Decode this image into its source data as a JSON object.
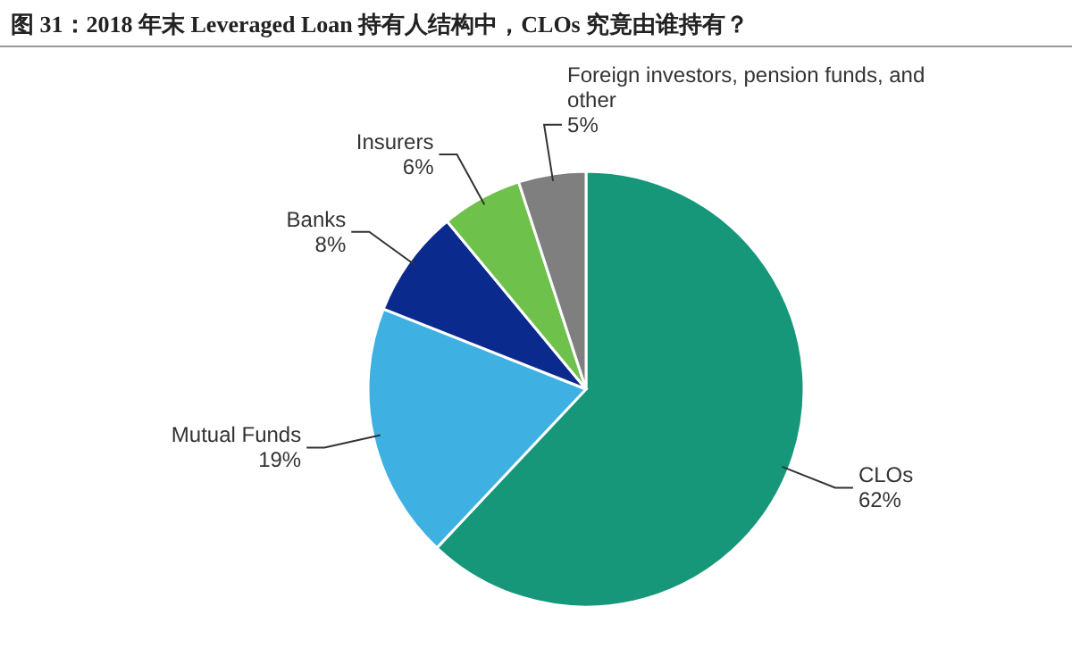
{
  "chart_data": {
    "type": "pie",
    "title": "图 31：2018 年末 Leveraged Loan 持有人结构中，CLOs 究竟由谁持有？",
    "categories": [
      "CLOs",
      "Mutual Funds",
      "Banks",
      "Insurers",
      "Foreign investors, pension funds, and other"
    ],
    "values": [
      62,
      19,
      8,
      6,
      5
    ],
    "colors": [
      "#17977a",
      "#3eb0e2",
      "#0b2a8e",
      "#6ec14b",
      "#7f7f7f"
    ],
    "value_labels": [
      "62%",
      "19%",
      "8%",
      "6%",
      "5%"
    ]
  }
}
